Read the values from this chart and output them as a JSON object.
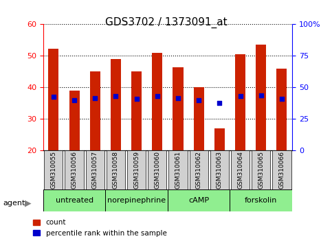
{
  "title": "GDS3702 / 1373091_at",
  "samples": [
    "GSM310055",
    "GSM310056",
    "GSM310057",
    "GSM310058",
    "GSM310059",
    "GSM310060",
    "GSM310061",
    "GSM310062",
    "GSM310063",
    "GSM310064",
    "GSM310065",
    "GSM310066"
  ],
  "counts": [
    52.2,
    39.0,
    45.0,
    49.0,
    45.0,
    51.0,
    46.5,
    40.0,
    27.0,
    50.5,
    53.5,
    46.0
  ],
  "percentiles": [
    42.5,
    40.0,
    41.5,
    43.0,
    41.0,
    43.0,
    41.5,
    40.0,
    38.0,
    43.0,
    43.5,
    41.0
  ],
  "ylim_left": [
    20,
    60
  ],
  "ylim_right": [
    0,
    100
  ],
  "yticks_left": [
    20,
    30,
    40,
    50,
    60
  ],
  "yticks_right": [
    0,
    25,
    50,
    75,
    100
  ],
  "ytick_labels_right": [
    "0",
    "25",
    "50",
    "75",
    "100%"
  ],
  "bar_color": "#cc2200",
  "percentile_color": "#0000cc",
  "grid_color": "#000000",
  "agents": [
    {
      "label": "untreated",
      "start": 0,
      "end": 3
    },
    {
      "label": "norepinephrine",
      "start": 3,
      "end": 6
    },
    {
      "label": "cAMP",
      "start": 6,
      "end": 9
    },
    {
      "label": "forskolin",
      "start": 9,
      "end": 12
    }
  ],
  "agent_bg_color": "#90ee90",
  "sample_bg_color": "#d0d0d0",
  "bar_width": 0.5,
  "legend_count_label": "count",
  "legend_pct_label": "percentile rank within the sample",
  "agent_label": "agent",
  "title_fontsize": 11,
  "axis_fontsize": 9,
  "tick_fontsize": 8
}
